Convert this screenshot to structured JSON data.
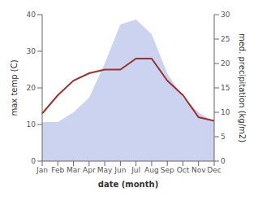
{
  "chart_data": {
    "type": "line",
    "xlabel": "date (month)",
    "ylabel": "max temp (C)",
    "y2label": "med. precipitation (kg/m2)",
    "categories": [
      "Jan",
      "Feb",
      "Mar",
      "Apr",
      "May",
      "Jun",
      "Jul",
      "Aug",
      "Sep",
      "Oct",
      "Nov",
      "Dec"
    ],
    "series": [
      {
        "type": "area",
        "axis": "y2",
        "color": "#b0bce8",
        "values": [
          8,
          8,
          10,
          13,
          20,
          28,
          29,
          26,
          18,
          13,
          10,
          8
        ]
      },
      {
        "type": "line",
        "color": "#993333",
        "values": [
          13,
          18,
          22,
          24,
          25,
          25,
          28,
          28,
          22,
          18,
          12,
          11
        ]
      }
    ],
    "ylim": [
      0,
      40
    ],
    "yticks": [
      0,
      10,
      20,
      30,
      40
    ],
    "y2lim": [
      0,
      30
    ],
    "y2ticks": [
      0,
      5,
      10,
      15,
      20,
      25,
      30
    ],
    "grid": false
  }
}
